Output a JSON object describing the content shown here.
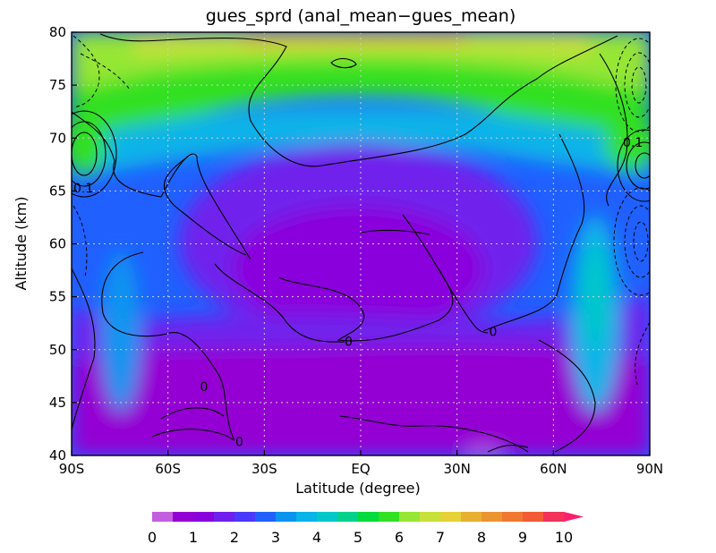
{
  "chart_data": {
    "type": "heatmap",
    "title": "gues_sprd (anal_mean−gues_mean)",
    "xlabel": "Latitude (degree)",
    "ylabel": "Altitude (km)",
    "xlim": [
      -90,
      90
    ],
    "ylim": [
      40,
      80
    ],
    "x_ticks": [
      {
        "value": -90,
        "label": "90S"
      },
      {
        "value": -60,
        "label": "60S"
      },
      {
        "value": -30,
        "label": "30S"
      },
      {
        "value": 0,
        "label": "EQ"
      },
      {
        "value": 30,
        "label": "30N"
      },
      {
        "value": 60,
        "label": "60N"
      },
      {
        "value": 90,
        "label": "90N"
      }
    ],
    "y_ticks": [
      {
        "value": 40,
        "label": "40"
      },
      {
        "value": 45,
        "label": "45"
      },
      {
        "value": 50,
        "label": "50"
      },
      {
        "value": 55,
        "label": "55"
      },
      {
        "value": 60,
        "label": "60"
      },
      {
        "value": 65,
        "label": "65"
      },
      {
        "value": 70,
        "label": "70"
      },
      {
        "value": 75,
        "label": "75"
      },
      {
        "value": 80,
        "label": "80"
      }
    ],
    "grid": true,
    "colorbar": {
      "levels": [
        0,
        0.5,
        1,
        1.5,
        2,
        2.5,
        3,
        3.5,
        4,
        4.5,
        5,
        5.5,
        6,
        6.5,
        7,
        7.5,
        8,
        8.5,
        9,
        9.5,
        10
      ],
      "colors": [
        "#c35ede",
        "#9400d3",
        "#8a00dc",
        "#7020ec",
        "#4a3aff",
        "#2060ff",
        "#0a94f0",
        "#08b4e8",
        "#00c8c8",
        "#00d28c",
        "#00dc3c",
        "#32e024",
        "#96e634",
        "#c8e03a",
        "#e6d238",
        "#e8b030",
        "#ec9430",
        "#f07830",
        "#f45a34",
        "#f23258",
        "#ff1e6e"
      ],
      "tick_labels": [
        "0",
        "1",
        "2",
        "3",
        "4",
        "5",
        "6",
        "7",
        "8",
        "9",
        "10"
      ],
      "extend": "max"
    },
    "contour_labels": [
      {
        "x": -90,
        "y": 65.3,
        "text": "0.1"
      },
      {
        "x": 82,
        "y": 69.6,
        "text": "0.1"
      },
      {
        "x": -50,
        "y": 46.5,
        "text": "0"
      },
      {
        "x": -39,
        "y": 41.3,
        "text": "0"
      },
      {
        "x": -5,
        "y": 50.8,
        "text": "0"
      },
      {
        "x": 40,
        "y": 51.7,
        "text": "0"
      }
    ]
  }
}
